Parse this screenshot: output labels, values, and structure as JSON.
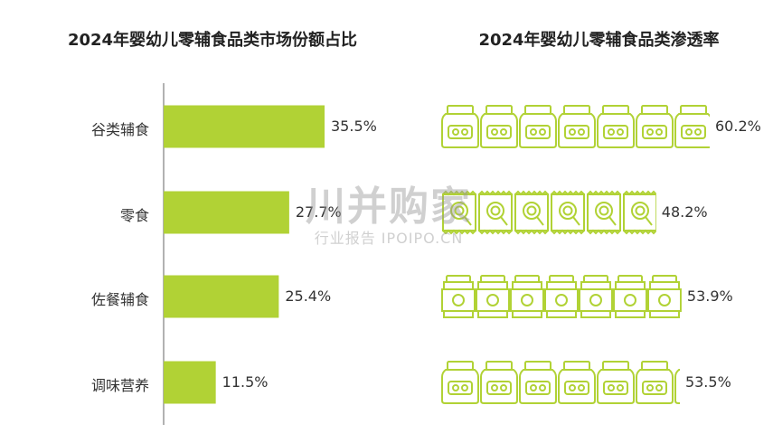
{
  "chart_data": [
    {
      "type": "bar",
      "orientation": "horizontal",
      "title": "2024年婴幼儿零辅食品类市场份额占比",
      "categories": [
        "谷类辅食",
        "零食",
        "佐餐辅食",
        "调味营养"
      ],
      "values": [
        35.5,
        27.7,
        25.4,
        11.5
      ],
      "value_labels": [
        "35.5%",
        "27.7%",
        "25.4%",
        "11.5%"
      ],
      "xlim": [
        0,
        40
      ],
      "grid": false,
      "color": "#b1d235"
    },
    {
      "type": "bar",
      "orientation": "horizontal",
      "style": "pictograph",
      "title": "2024年婴幼儿零辅食品类渗透率",
      "categories": [
        "谷类辅食",
        "零食",
        "佐餐辅食",
        "调味营养"
      ],
      "values": [
        60.2,
        48.2,
        53.9,
        53.5
      ],
      "value_labels": [
        "60.2%",
        "48.2%",
        "53.9%",
        "53.5%"
      ],
      "icons": [
        "jar-icon",
        "lollipop-pack-icon",
        "can-icon",
        "jar-icon"
      ],
      "xlim": [
        0,
        60.2
      ],
      "grid": false,
      "color": "#b1d235"
    }
  ],
  "watermark": {
    "main": "川并购家",
    "sub": "行业报告 IPOIPO.CN"
  }
}
